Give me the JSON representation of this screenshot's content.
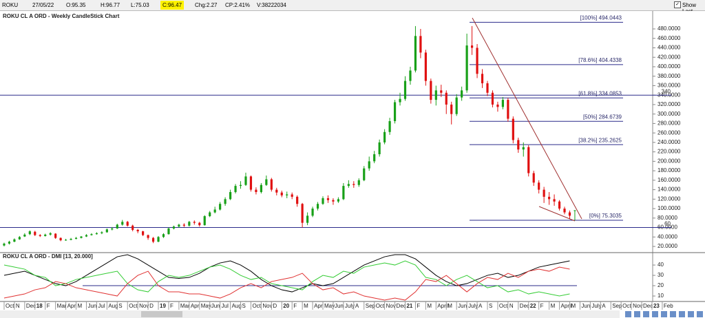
{
  "toolbar": {
    "symbol": "ROKU",
    "date": "27/05/22",
    "open": "O:95.35",
    "high": "H:96.77",
    "low": "L:75.03",
    "close": "C:96.47",
    "change": "Chg:2.27",
    "change_pct": "CP:2.41%",
    "volume": "V:38222034",
    "show_last": "Show Last"
  },
  "chart_data": [
    {
      "type": "candlestick",
      "title": "ROKU CL A ORD - Weekly CandleStick Chart",
      "open": [
        22,
        26,
        30,
        35,
        41,
        46,
        51,
        44,
        42,
        45,
        47,
        38,
        33,
        34,
        36,
        38,
        41,
        44,
        46,
        48,
        50,
        56,
        58,
        66,
        72,
        64,
        55,
        52,
        44,
        38,
        30,
        40,
        46,
        58,
        62,
        66,
        64,
        72,
        70,
        65,
        84,
        92,
        98,
        110,
        120,
        135,
        148,
        150,
        168,
        140,
        135,
        150,
        162,
        140,
        134,
        128,
        130,
        125,
        110,
        70,
        85,
        100,
        110,
        122,
        118,
        115,
        120,
        148,
        152,
        150,
        160,
        185,
        200,
        215,
        240,
        262,
        285,
        325,
        332,
        370,
        392,
        465,
        430,
        370,
        330,
        350,
        345,
        320,
        300,
        335,
        350,
        445,
        440,
        385,
        365,
        345,
        320,
        315,
        330,
        290,
        245,
        225,
        230,
        175,
        155,
        140,
        125,
        120,
        115,
        100,
        92,
        95.35
      ],
      "high": [
        28,
        32,
        37,
        42,
        48,
        54,
        53,
        46,
        47,
        50,
        48,
        39,
        36,
        38,
        40,
        42,
        46,
        48,
        50,
        52,
        58,
        61,
        68,
        76,
        74,
        66,
        57,
        53,
        45,
        40,
        42,
        48,
        60,
        64,
        68,
        69,
        74,
        75,
        72,
        86,
        95,
        104,
        114,
        124,
        140,
        152,
        158,
        176,
        170,
        145,
        154,
        170,
        165,
        144,
        138,
        136,
        134,
        128,
        112,
        92,
        104,
        114,
        126,
        128,
        122,
        124,
        154,
        160,
        158,
        164,
        190,
        210,
        222,
        246,
        268,
        292,
        330,
        345,
        380,
        400,
        486,
        480,
        436,
        375,
        360,
        362,
        350,
        326,
        342,
        358,
        470,
        486,
        448,
        395,
        370,
        350,
        326,
        336,
        334,
        295,
        250,
        240,
        234,
        180,
        160,
        146,
        135,
        130,
        118,
        104,
        96,
        96.77
      ],
      "low": [
        20,
        24,
        29,
        34,
        40,
        44,
        42,
        40,
        41,
        43,
        36,
        31,
        32,
        33,
        35,
        37,
        40,
        43,
        45,
        46,
        49,
        54,
        57,
        64,
        62,
        52,
        48,
        42,
        34,
        27,
        29,
        38,
        45,
        56,
        60,
        61,
        62,
        66,
        62,
        64,
        82,
        90,
        96,
        106,
        118,
        132,
        142,
        148,
        136,
        130,
        132,
        148,
        136,
        128,
        124,
        122,
        120,
        104,
        60,
        65,
        82,
        96,
        108,
        112,
        108,
        112,
        118,
        144,
        144,
        146,
        158,
        180,
        196,
        210,
        236,
        256,
        280,
        318,
        328,
        362,
        388,
        418,
        360,
        322,
        318,
        336,
        300,
        278,
        296,
        328,
        345,
        425,
        376,
        355,
        338,
        314,
        305,
        310,
        284,
        238,
        218,
        210,
        168,
        148,
        132,
        112,
        108,
        106,
        96,
        88,
        78,
        75.03
      ],
      "close": [
        26,
        30,
        35,
        40,
        45,
        52,
        44,
        42,
        45,
        48,
        38,
        33,
        34,
        36,
        38,
        41,
        44,
        46,
        48,
        50,
        56,
        58,
        66,
        72,
        64,
        55,
        52,
        44,
        38,
        30,
        40,
        46,
        58,
        62,
        66,
        64,
        72,
        70,
        65,
        84,
        92,
        98,
        110,
        120,
        135,
        148,
        150,
        168,
        140,
        135,
        150,
        162,
        140,
        134,
        128,
        130,
        125,
        110,
        70,
        85,
        100,
        110,
        122,
        118,
        115,
        120,
        148,
        152,
        150,
        160,
        185,
        200,
        215,
        240,
        262,
        285,
        325,
        332,
        370,
        392,
        465,
        430,
        370,
        330,
        350,
        345,
        320,
        300,
        335,
        350,
        445,
        440,
        385,
        365,
        345,
        320,
        315,
        330,
        290,
        245,
        225,
        230,
        175,
        155,
        140,
        125,
        120,
        115,
        100,
        92,
        85,
        96.47
      ],
      "up_color": "#18a018",
      "down_color": "#e01010",
      "xlim": [
        -0.8,
        133.1
      ],
      "xticks": [
        {
          "value": 0,
          "label": "Oct"
        },
        {
          "value": 2,
          "label": "N"
        },
        {
          "value": 4,
          "label": "Dec"
        },
        {
          "value": 6,
          "label": "18"
        },
        {
          "value": 8,
          "label": "F"
        },
        {
          "value": 10,
          "label": "Mar"
        },
        {
          "value": 12,
          "label": "Apr"
        },
        {
          "value": 14,
          "label": "M"
        },
        {
          "value": 16,
          "label": "Jun"
        },
        {
          "value": 18,
          "label": "Jul"
        },
        {
          "value": 20,
          "label": "Aug"
        },
        {
          "value": 22,
          "label": "S"
        },
        {
          "value": 24,
          "label": "Oct"
        },
        {
          "value": 26,
          "label": "Nov"
        },
        {
          "value": 28,
          "label": "D"
        },
        {
          "value": 30,
          "label": "19"
        },
        {
          "value": 32,
          "label": "F"
        },
        {
          "value": 34,
          "label": "Mar"
        },
        {
          "value": 36,
          "label": "Apr"
        },
        {
          "value": 38,
          "label": "May"
        },
        {
          "value": 40,
          "label": "Jun"
        },
        {
          "value": 42,
          "label": "Jul"
        },
        {
          "value": 44,
          "label": "Aug"
        },
        {
          "value": 46,
          "label": "S"
        },
        {
          "value": 48,
          "label": "Oct"
        },
        {
          "value": 50,
          "label": "Nov"
        },
        {
          "value": 52,
          "label": "D"
        },
        {
          "value": 54,
          "label": "20"
        },
        {
          "value": 56,
          "label": "F"
        },
        {
          "value": 58,
          "label": "M"
        },
        {
          "value": 60,
          "label": "Apr"
        },
        {
          "value": 62,
          "label": "May"
        },
        {
          "value": 64,
          "label": "Jun"
        },
        {
          "value": 66,
          "label": "July"
        },
        {
          "value": 68,
          "label": "A"
        },
        {
          "value": 70,
          "label": "Sep"
        },
        {
          "value": 72,
          "label": "Oct"
        },
        {
          "value": 74,
          "label": "Nov"
        },
        {
          "value": 76,
          "label": "Dec"
        },
        {
          "value": 78,
          "label": "21"
        },
        {
          "value": 80,
          "label": "F"
        },
        {
          "value": 82,
          "label": "M"
        },
        {
          "value": 84,
          "label": "April"
        },
        {
          "value": 86,
          "label": "M"
        },
        {
          "value": 88,
          "label": "Jun"
        },
        {
          "value": 90,
          "label": "July"
        },
        {
          "value": 92,
          "label": "A"
        },
        {
          "value": 94,
          "label": "S"
        },
        {
          "value": 96,
          "label": "Oct"
        },
        {
          "value": 98,
          "label": "N"
        },
        {
          "value": 100,
          "label": "Dec"
        },
        {
          "value": 102,
          "label": "22"
        },
        {
          "value": 104,
          "label": "F"
        },
        {
          "value": 106,
          "label": "M"
        },
        {
          "value": 108,
          "label": "April"
        },
        {
          "value": 110,
          "label": "M"
        },
        {
          "value": 112,
          "label": "Jun"
        },
        {
          "value": 114,
          "label": "July"
        },
        {
          "value": 116,
          "label": "A"
        },
        {
          "value": 118,
          "label": "Sep"
        },
        {
          "value": 120,
          "label": "Oct"
        },
        {
          "value": 122,
          "label": "Nov"
        },
        {
          "value": 124,
          "label": "Dec"
        },
        {
          "value": 126,
          "label": "23"
        },
        {
          "value": 128,
          "label": "Feb"
        }
      ],
      "ylim": [
        8.4,
        516.4
      ],
      "yticks": [
        {
          "value": 20,
          "label": "20.0000"
        },
        {
          "value": 40,
          "label": "40.0000"
        },
        {
          "value": 60,
          "label": "60.0000"
        },
        {
          "value": 80,
          "label": "80.0000"
        },
        {
          "value": 100,
          "label": "100.0000"
        },
        {
          "value": 120,
          "label": "120.0000"
        },
        {
          "value": 140,
          "label": "140.0000"
        },
        {
          "value": 160,
          "label": "160.0000"
        },
        {
          "value": 180,
          "label": "180.0000"
        },
        {
          "value": 200,
          "label": "200.0000"
        },
        {
          "value": 220,
          "label": "220.0000"
        },
        {
          "value": 240,
          "label": "240.0000"
        },
        {
          "value": 260,
          "label": "260.0000"
        },
        {
          "value": 280,
          "label": "280.0000"
        },
        {
          "value": 300,
          "label": "300.0000"
        },
        {
          "value": 320,
          "label": "320.0000"
        },
        {
          "value": 340,
          "label": "340.0000"
        },
        {
          "value": 360,
          "label": "360.0000"
        },
        {
          "value": 380,
          "label": "380.0000"
        },
        {
          "value": 400,
          "label": "400.0000"
        },
        {
          "value": 420,
          "label": "420.0000"
        },
        {
          "value": 440,
          "label": "440.0000"
        },
        {
          "value": 460,
          "label": "460.0000"
        },
        {
          "value": 480,
          "label": "480.0000"
        }
      ],
      "horizontal_lines": [
        340,
        60
      ],
      "level_color": "#2a2a8a",
      "fib_levels": [
        {
          "value": 494.0443,
          "label": "[100%] 494.0443"
        },
        {
          "value": 404.4338,
          "label": "[78.6%] 404.4338"
        },
        {
          "value": 334.0853,
          "label": "[61.8%] 334.0853"
        },
        {
          "value": 284.6739,
          "label": "[50%] 284.6739"
        },
        {
          "value": 235.2625,
          "label": "[38.2%] 235.2625"
        },
        {
          "value": 75.3035,
          "label": "[0%] 75.3035"
        }
      ],
      "trend_color": "#a03030"
    },
    {
      "type": "line",
      "title": "ROKU CL A ORD - DMI [13, 20.000]",
      "x": [
        0,
        2,
        4,
        6,
        8,
        10,
        12,
        14,
        16,
        18,
        20,
        22,
        24,
        26,
        28,
        30,
        32,
        34,
        36,
        38,
        40,
        42,
        44,
        46,
        48,
        50,
        52,
        54,
        56,
        58,
        60,
        62,
        64,
        66,
        68,
        70,
        72,
        74,
        76,
        78,
        80,
        82,
        84,
        86,
        88,
        90,
        92,
        94,
        96,
        98,
        100,
        102,
        104,
        106,
        108,
        110
      ],
      "series": [
        {
          "color": "#000000",
          "values": [
            30,
            32,
            34,
            30,
            26,
            22,
            20,
            24,
            30,
            36,
            42,
            48,
            50,
            46,
            40,
            34,
            28,
            27,
            28,
            32,
            38,
            42,
            44,
            40,
            34,
            26,
            20,
            16,
            14,
            18,
            22,
            20,
            22,
            28,
            34,
            40,
            44,
            48,
            50,
            50,
            46,
            38,
            30,
            24,
            20,
            22,
            26,
            30,
            32,
            28,
            30,
            34,
            38,
            40,
            42,
            44
          ]
        },
        {
          "color": "#33cc33",
          "values": [
            40,
            38,
            36,
            30,
            28,
            20,
            22,
            26,
            28,
            30,
            32,
            34,
            22,
            16,
            14,
            24,
            30,
            28,
            30,
            34,
            38,
            40,
            36,
            30,
            26,
            28,
            22,
            20,
            18,
            16,
            24,
            30,
            28,
            34,
            32,
            38,
            40,
            42,
            40,
            44,
            40,
            28,
            26,
            20,
            26,
            30,
            24,
            18,
            20,
            14,
            16,
            12,
            14,
            12,
            10,
            12
          ]
        },
        {
          "color": "#e03030",
          "values": [
            8,
            10,
            12,
            16,
            18,
            24,
            22,
            18,
            16,
            14,
            12,
            10,
            22,
            30,
            34,
            20,
            14,
            14,
            12,
            12,
            10,
            8,
            12,
            18,
            22,
            18,
            24,
            26,
            28,
            32,
            22,
            16,
            18,
            12,
            14,
            10,
            8,
            6,
            8,
            6,
            14,
            26,
            24,
            30,
            22,
            14,
            22,
            28,
            26,
            32,
            28,
            34,
            36,
            34,
            38,
            36
          ]
        }
      ],
      "ylim": [
        4.7,
        50.7
      ],
      "yticks": [
        10,
        20,
        30,
        40
      ],
      "horizontal_lines": [
        20
      ],
      "level_color": "#2a2a8a"
    }
  ]
}
